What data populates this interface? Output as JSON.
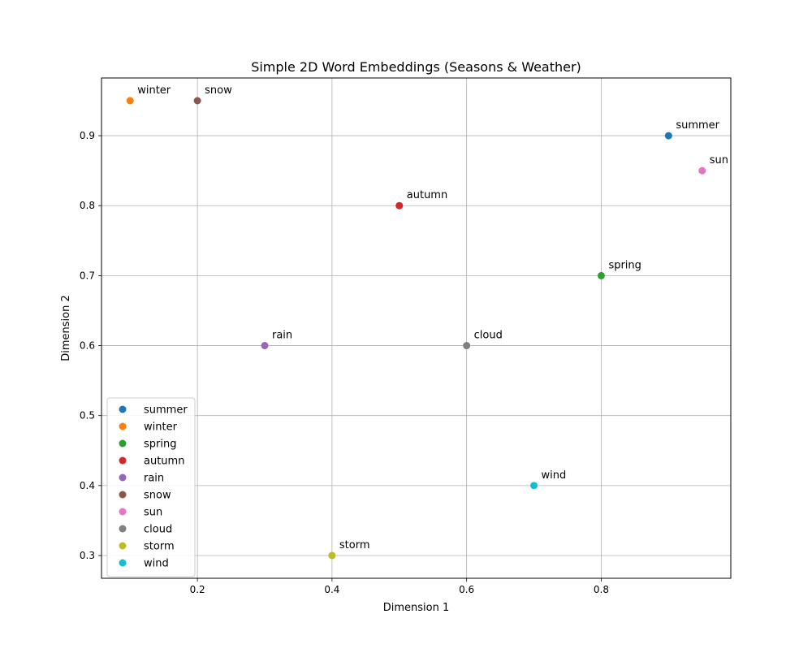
{
  "chart_data": {
    "type": "scatter",
    "title": "Simple 2D Word Embeddings (Seasons & Weather)",
    "xlabel": "Dimension 1",
    "ylabel": "Dimension 2",
    "xlim": [
      0.0575,
      0.9925
    ],
    "ylim": [
      0.2675,
      0.9825
    ],
    "xticks": [
      0.2,
      0.4,
      0.6,
      0.8
    ],
    "xtick_labels": [
      "0.2",
      "0.4",
      "0.6",
      "0.8"
    ],
    "yticks": [
      0.3,
      0.4,
      0.5,
      0.6,
      0.7,
      0.8,
      0.9
    ],
    "ytick_labels": [
      "0.3",
      "0.4",
      "0.5",
      "0.6",
      "0.7",
      "0.8",
      "0.9"
    ],
    "grid": true,
    "legend_position": "lower-left",
    "series": [
      {
        "name": "summer",
        "x": 0.9,
        "y": 0.9,
        "color": "#1f77b4"
      },
      {
        "name": "winter",
        "x": 0.1,
        "y": 0.95,
        "color": "#ff7f0e"
      },
      {
        "name": "spring",
        "x": 0.8,
        "y": 0.7,
        "color": "#2ca02c"
      },
      {
        "name": "autumn",
        "x": 0.5,
        "y": 0.8,
        "color": "#d62728"
      },
      {
        "name": "rain",
        "x": 0.3,
        "y": 0.6,
        "color": "#9467bd"
      },
      {
        "name": "snow",
        "x": 0.2,
        "y": 0.95,
        "color": "#8c564b"
      },
      {
        "name": "sun",
        "x": 0.95,
        "y": 0.85,
        "color": "#e377c2"
      },
      {
        "name": "cloud",
        "x": 0.6,
        "y": 0.6,
        "color": "#7f7f7f"
      },
      {
        "name": "storm",
        "x": 0.4,
        "y": 0.3,
        "color": "#bcbd22"
      },
      {
        "name": "wind",
        "x": 0.7,
        "y": 0.4,
        "color": "#17becf"
      }
    ]
  }
}
